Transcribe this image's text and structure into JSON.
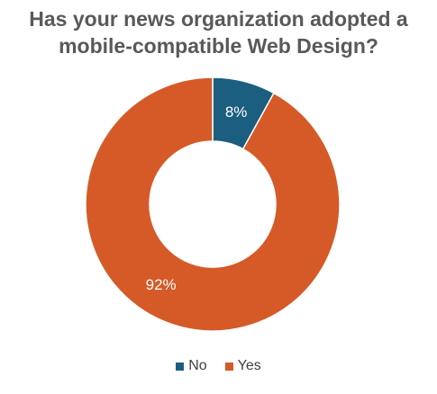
{
  "chart_data": {
    "type": "pie",
    "title_lines": [
      "Has your news organization adopted a",
      "mobile-compatible Web Design?"
    ],
    "categories": [
      "No",
      "Yes"
    ],
    "values": [
      8,
      92
    ],
    "data_labels": [
      "8%",
      "92%"
    ],
    "colors": [
      "#1b5e7f",
      "#d55a27"
    ],
    "donut": true,
    "legend_position": "bottom"
  }
}
